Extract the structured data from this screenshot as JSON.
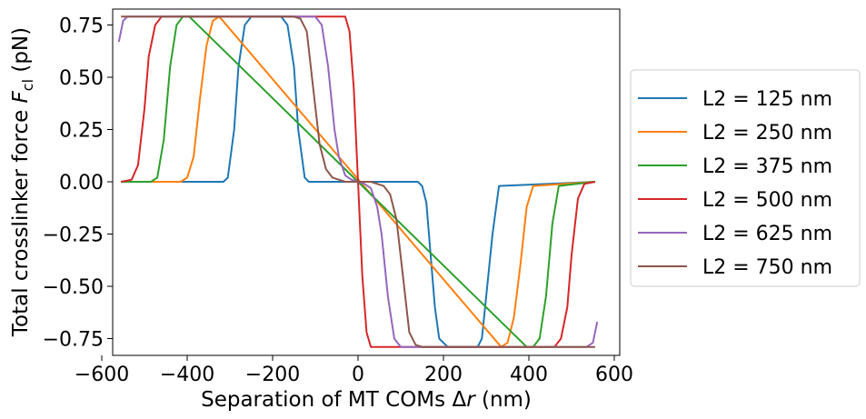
{
  "chart_data": {
    "type": "line",
    "xlabel": "Separation of MT COMs Δr (nm)",
    "ylabel": "Total crosslinker force F_cl (pN)",
    "xlim": [
      -600,
      600
    ],
    "ylim": [
      -0.85,
      0.85
    ],
    "xticks": [
      -600,
      -400,
      -200,
      0,
      200,
      400,
      600
    ],
    "xtick_labels": [
      "−600",
      "−400",
      "−200",
      "0",
      "200",
      "400",
      "600"
    ],
    "yticks": [
      0.75,
      0.5,
      0.25,
      0.0,
      -0.25,
      -0.5,
      -0.75
    ],
    "ytick_labels": [
      "0.75",
      "0.50",
      "0.25",
      "0.00",
      "−0.25",
      "−0.50",
      "−0.75"
    ],
    "grid": false,
    "legend_position": "outside-right",
    "series": [
      {
        "name": "L2 = 125 nm",
        "color": "#1f77b4",
        "x": [
          -555,
          -315,
          -305,
          -290,
          -280,
          -265,
          -250,
          -180,
          -165,
          -150,
          -140,
          -125,
          -115,
          140,
          150,
          160,
          170,
          180,
          190,
          210,
          280,
          290,
          300,
          315,
          330,
          555
        ],
        "y": [
          0,
          0,
          0.02,
          0.25,
          0.55,
          0.75,
          0.79,
          0.79,
          0.75,
          0.55,
          0.25,
          0.02,
          0,
          0,
          -0.02,
          -0.1,
          -0.35,
          -0.6,
          -0.75,
          -0.79,
          -0.79,
          -0.75,
          -0.55,
          -0.25,
          -0.02,
          0
        ]
      },
      {
        "name": "L2 = 250 nm",
        "color": "#ff7f0e",
        "x": [
          -555,
          -415,
          -400,
          -385,
          -370,
          -355,
          -340,
          -325,
          335,
          350,
          365,
          380,
          395,
          410,
          555
        ],
        "y": [
          0,
          0,
          0.02,
          0.12,
          0.4,
          0.65,
          0.77,
          0.79,
          -0.79,
          -0.77,
          -0.65,
          -0.4,
          -0.12,
          -0.02,
          0
        ]
      },
      {
        "name": "L2 = 375 nm",
        "color": "#2ca02c",
        "x": [
          -555,
          -485,
          -470,
          -455,
          -440,
          -425,
          -410,
          -395,
          395,
          410,
          425,
          440,
          455,
          470,
          555
        ],
        "y": [
          0,
          0,
          0.02,
          0.2,
          0.55,
          0.75,
          0.79,
          0.79,
          -0.79,
          -0.79,
          -0.75,
          -0.55,
          -0.2,
          -0.02,
          0
        ]
      },
      {
        "name": "L2 = 500 nm",
        "color": "#d62728",
        "x": [
          -555,
          -530,
          -515,
          -500,
          -490,
          -475,
          -460,
          -445,
          -30,
          -20,
          -10,
          0,
          10,
          20,
          30,
          445,
          460,
          475,
          490,
          500,
          515,
          530,
          555
        ],
        "y": [
          0,
          0.01,
          0.08,
          0.35,
          0.6,
          0.75,
          0.79,
          0.79,
          0.79,
          0.72,
          0.45,
          0,
          -0.45,
          -0.72,
          -0.79,
          -0.79,
          -0.79,
          -0.75,
          -0.6,
          -0.35,
          -0.08,
          -0.01,
          0
        ]
      },
      {
        "name": "L2 = 625 nm",
        "color": "#9467bd",
        "x": [
          -560,
          -550,
          -540,
          -120,
          -100,
          -85,
          -70,
          -55,
          -45,
          -30,
          -15,
          0,
          15,
          30,
          45,
          55,
          70,
          85,
          100,
          120,
          535,
          550,
          560
        ],
        "y": [
          0.67,
          0.77,
          0.79,
          0.79,
          0.79,
          0.75,
          0.55,
          0.25,
          0.12,
          0.03,
          0.01,
          0,
          -0.01,
          -0.03,
          -0.12,
          -0.25,
          -0.55,
          -0.75,
          -0.79,
          -0.79,
          -0.79,
          -0.77,
          -0.67
        ]
      },
      {
        "name": "L2 = 750 nm",
        "color": "#8c564b",
        "x": [
          -555,
          -150,
          -135,
          -120,
          -105,
          -90,
          -75,
          -60,
          -45,
          -30,
          30,
          45,
          60,
          75,
          90,
          105,
          120,
          135,
          150,
          555
        ],
        "y": [
          0.79,
          0.79,
          0.78,
          0.72,
          0.45,
          0.18,
          0.06,
          0.02,
          0.01,
          0,
          0,
          -0.01,
          -0.02,
          -0.06,
          -0.18,
          -0.45,
          -0.72,
          -0.78,
          -0.79,
          -0.79
        ]
      }
    ]
  }
}
